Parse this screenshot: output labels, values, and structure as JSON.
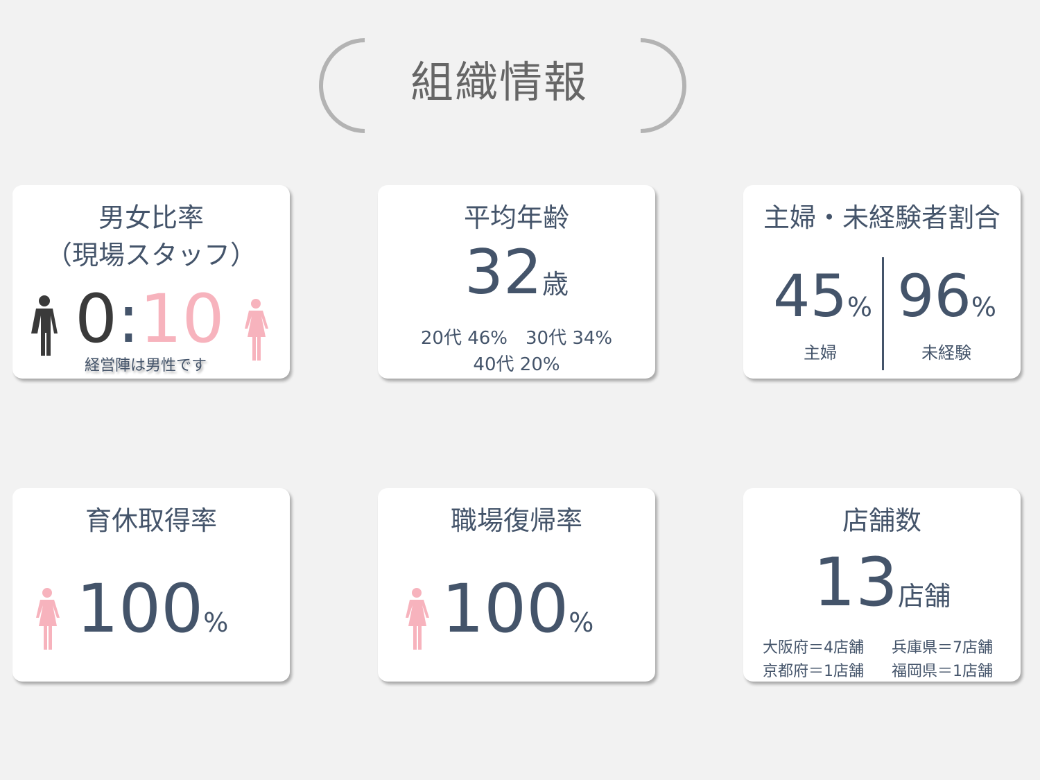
{
  "heading": "組織情報",
  "colors": {
    "text": "#44546a",
    "pink": "#f7b3bd",
    "male": "#3a3a3a",
    "background": "#f2f2f2"
  },
  "cards": {
    "gender": {
      "title1": "男女比率",
      "title2": "（現場スタッフ）",
      "male": "0",
      "sep": ":",
      "female": "10",
      "note": "経営陣は男性です",
      "icons": [
        "male-person-icon",
        "female-person-icon"
      ]
    },
    "age": {
      "title": "平均年齢",
      "value": "32",
      "unit": "歳",
      "line1": "20代 46%　30代 34%",
      "line2": "40代 20%"
    },
    "housewife": {
      "title": "主婦・未経験者割合",
      "left_value": "45",
      "left_unit": "%",
      "left_label": "主婦",
      "right_value": "96",
      "right_unit": "%",
      "right_label": "未経験"
    },
    "childcare": {
      "title": "育休取得率",
      "value": "100",
      "unit": "%"
    },
    "return": {
      "title": "職場復帰率",
      "value": "100",
      "unit": "%"
    },
    "stores": {
      "title": "店舗数",
      "value": "13",
      "unit": "店舗",
      "rows": [
        [
          "大阪府＝4店舗",
          "兵庫県＝7店舗"
        ],
        [
          "京都府＝1店舗",
          "福岡県＝1店舗"
        ]
      ]
    }
  }
}
